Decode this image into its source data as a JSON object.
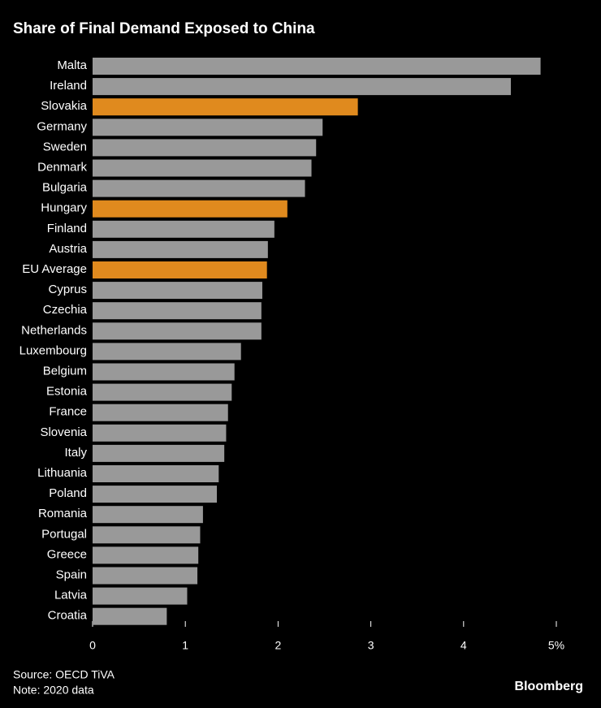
{
  "chart_data": {
    "type": "bar",
    "orientation": "horizontal",
    "title": "Share of Final Demand Exposed to China",
    "categories": [
      "Malta",
      "Ireland",
      "Slovakia",
      "Germany",
      "Sweden",
      "Denmark",
      "Bulgaria",
      "Hungary",
      "Finland",
      "Austria",
      "EU Average",
      "Cyprus",
      "Czechia",
      "Netherlands",
      "Luxembourg",
      "Belgium",
      "Estonia",
      "France",
      "Slovenia",
      "Italy",
      "Lithuania",
      "Poland",
      "Romania",
      "Portugal",
      "Greece",
      "Spain",
      "Latvia",
      "Croatia"
    ],
    "values": [
      4.83,
      4.51,
      2.86,
      2.48,
      2.41,
      2.36,
      2.29,
      2.1,
      1.96,
      1.89,
      1.88,
      1.83,
      1.82,
      1.82,
      1.6,
      1.53,
      1.5,
      1.46,
      1.44,
      1.42,
      1.36,
      1.34,
      1.19,
      1.16,
      1.14,
      1.13,
      1.02,
      0.8
    ],
    "colors": [
      "#999999",
      "#999999",
      "#e08a1e",
      "#999999",
      "#999999",
      "#999999",
      "#999999",
      "#e08a1e",
      "#999999",
      "#999999",
      "#e08a1e",
      "#999999",
      "#999999",
      "#999999",
      "#999999",
      "#999999",
      "#999999",
      "#999999",
      "#999999",
      "#999999",
      "#999999",
      "#999999",
      "#999999",
      "#999999",
      "#999999",
      "#999999",
      "#999999",
      "#999999"
    ],
    "xlim": [
      0,
      5
    ],
    "xticks": [
      0,
      1,
      2,
      3,
      4,
      {
        "value": 5,
        "label": "5%"
      }
    ],
    "source": "Source: OECD TiVA",
    "note": "Note: 2020 data",
    "brand": "Bloomberg"
  }
}
